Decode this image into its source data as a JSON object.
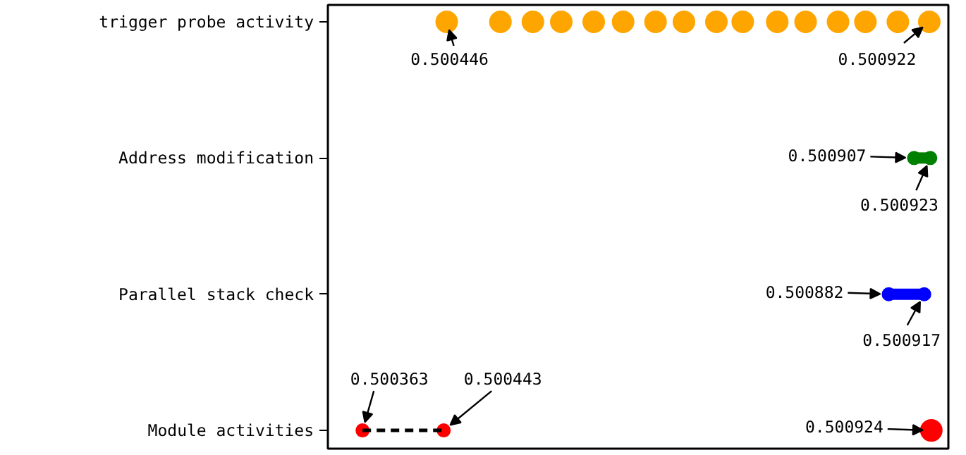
{
  "chart_data": {
    "type": "scatter",
    "orientation": "horizontal",
    "categories": [
      "trigger probe activity",
      "Address modification",
      "Parallel stack check",
      "Module activities"
    ],
    "tick_labels": "y",
    "grid": false,
    "marker": "circle",
    "series": [
      {
        "color": "#ffa500",
        "x": [
          "trigger probe activity",
          "trigger probe activity",
          "trigger probe activity",
          "trigger probe activity",
          "trigger probe activity",
          "trigger probe activity",
          "trigger probe activity",
          "trigger probe activity",
          "trigger probe activity",
          "trigger probe activity",
          "trigger probe activity",
          "trigger probe activity",
          "trigger probe activity",
          "trigger probe activity",
          "trigger probe activity",
          "trigger probe activity"
        ],
        "values": [
          0.500446,
          0.500499,
          0.500531,
          0.500559,
          0.500591,
          0.50062,
          0.500652,
          0.50068,
          0.500712,
          0.500738,
          0.500772,
          0.5008,
          0.500832,
          0.500859,
          0.500891,
          0.500922
        ],
        "value_labels": [
          "0.500446",
          null,
          null,
          null,
          null,
          null,
          null,
          null,
          null,
          null,
          null,
          null,
          null,
          null,
          null,
          "0.500922"
        ]
      },
      {
        "type": "line",
        "line_style": "solid",
        "color": "#008000",
        "x": [
          "Address modification",
          "Address modification"
        ],
        "values": [
          0.500907,
          0.500923
        ],
        "value_labels": [
          "0.500907",
          "0.500923"
        ]
      },
      {
        "type": "line",
        "line_style": "solid",
        "color": "#0000ff",
        "x": [
          "Parallel stack check",
          "Parallel stack check"
        ],
        "values": [
          0.500882,
          0.500917
        ],
        "value_labels": [
          "0.500882",
          "0.500917"
        ]
      },
      {
        "type": "line",
        "line_style": "dashed",
        "color": "#ff0000",
        "x": [
          "Module activities",
          "Module activities"
        ],
        "values": [
          0.500363,
          0.500443
        ],
        "value_labels": [
          "0.500363",
          "0.500443"
        ]
      },
      {
        "color": "#ff0000",
        "x": [
          "Module activities"
        ],
        "values": [
          0.500924
        ],
        "value_labels": [
          "0.500924"
        ]
      }
    ]
  }
}
